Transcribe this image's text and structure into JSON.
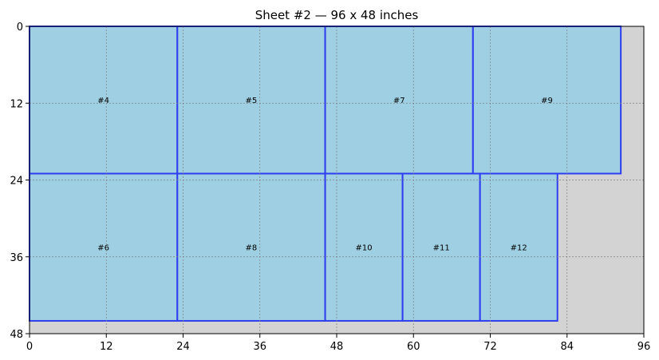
{
  "chart_data": {
    "type": "rectangles",
    "title": "Sheet #2 — 96 x 48 inches",
    "sheet": {
      "width": 96,
      "height": 48
    },
    "xlim": [
      0,
      96
    ],
    "ylim": [
      0,
      48
    ],
    "y_inverted": true,
    "x_ticks": [
      0,
      12,
      24,
      36,
      48,
      60,
      72,
      84,
      96
    ],
    "y_ticks": [
      0,
      12,
      24,
      36,
      48
    ],
    "grid": true,
    "colors": {
      "background": "#d3d3d3",
      "piece_fill": "#9ecfe2",
      "piece_edge": "#2f3ef0",
      "grid": "#808080"
    },
    "pieces": [
      {
        "label": "#4",
        "x": 0,
        "y": 0,
        "w": 23.1,
        "h": 23
      },
      {
        "label": "#5",
        "x": 23.1,
        "y": 0,
        "w": 23.1,
        "h": 23
      },
      {
        "label": "#7",
        "x": 46.2,
        "y": 0,
        "w": 23.1,
        "h": 23
      },
      {
        "label": "#9",
        "x": 69.3,
        "y": 0,
        "w": 23.1,
        "h": 23
      },
      {
        "label": "#6",
        "x": 0,
        "y": 23,
        "w": 23.1,
        "h": 23
      },
      {
        "label": "#8",
        "x": 23.1,
        "y": 23,
        "w": 23.1,
        "h": 23
      },
      {
        "label": "#10",
        "x": 46.2,
        "y": 23,
        "w": 12.1,
        "h": 23
      },
      {
        "label": "#11",
        "x": 58.3,
        "y": 23,
        "w": 12.1,
        "h": 23
      },
      {
        "label": "#12",
        "x": 70.4,
        "y": 23,
        "w": 12.1,
        "h": 23
      }
    ]
  }
}
